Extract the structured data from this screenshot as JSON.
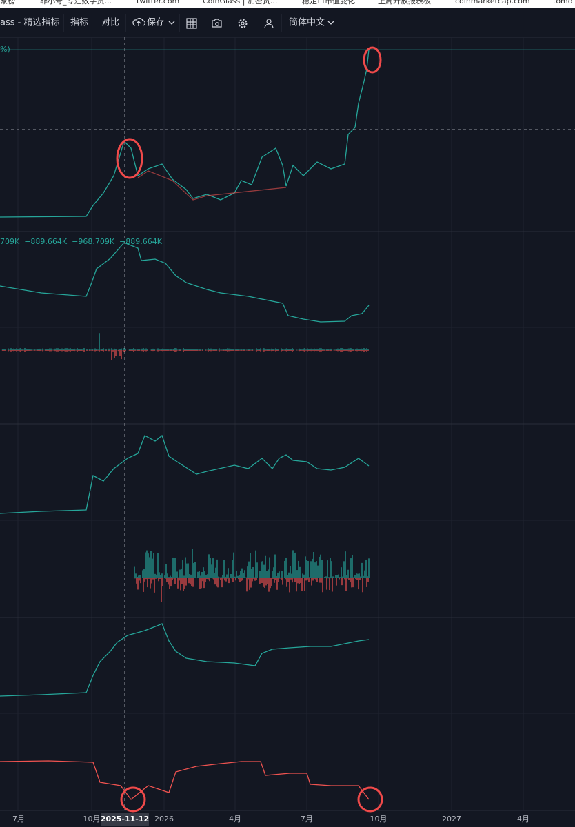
{
  "bookmarks": [
    "象榜",
    "非小号_专注数字货...",
    "twitter.com",
    "CoinGlass | 加密货...",
    "稳定币市值变化",
    "上周开放报表板",
    "coinmarketcap.com",
    "tomo"
  ],
  "toolbar": {
    "title": "ass - 精选指标",
    "indicators": "指标",
    "compare": "对比",
    "save": "保存",
    "language": "简体中文"
  },
  "panes": [
    {
      "legend": "%)"
    },
    {
      "legend": "709K  −889.664K  −968.709K  −889.664K"
    }
  ],
  "x_axis": {
    "labels": [
      "7月",
      "10月",
      "2026",
      "4月",
      "7月",
      "10月",
      "2027",
      "4月"
    ],
    "crosshair": "2025-11-12"
  }
}
